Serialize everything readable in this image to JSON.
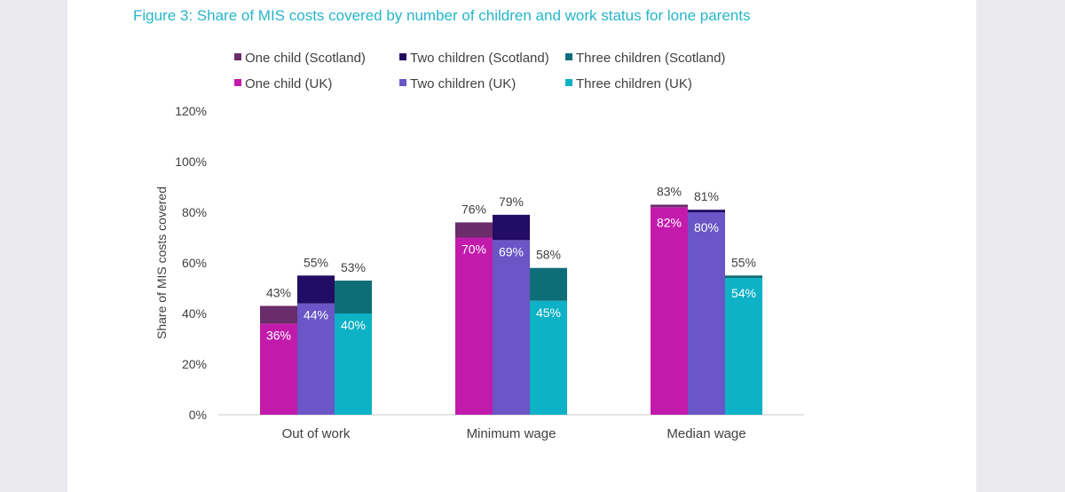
{
  "page": {
    "title": "Figure 3: Share of MIS costs covered by number of children and work status for lone parents",
    "colors": {
      "background": "#e9e9ee",
      "page": "#ffffff",
      "title": "#27b5c9"
    }
  },
  "chart_data": {
    "type": "bar",
    "stacked": true,
    "title": "Figure 3: Share of MIS costs covered by number of children and work status for lone parents",
    "ylabel": "Share of MIS costs covered",
    "xlabel": "",
    "categories": [
      "Out of work",
      "Minimum wage",
      "Median wage"
    ],
    "ylim": [
      0,
      120
    ],
    "yticks": [
      "0%",
      "20%",
      "40%",
      "60%",
      "80%",
      "100%",
      "120%"
    ],
    "grid": false,
    "legend_position": "top",
    "legend": [
      {
        "label": "One child (Scotland)",
        "color": "#6a2c6b"
      },
      {
        "label": "Two children (Scotland)",
        "color": "#230c63"
      },
      {
        "label": "Three children (Scotland)",
        "color": "#0e6e78"
      },
      {
        "label": "One child (UK)",
        "color": "#c21bac"
      },
      {
        "label": "Two children (UK)",
        "color": "#6a56c6"
      },
      {
        "label": "Three children (UK)",
        "color": "#0db2c6"
      }
    ],
    "groups": [
      {
        "name": "One child",
        "uk": [
          36,
          70,
          82
        ],
        "uk_labels": [
          "36%",
          "70%",
          "82%"
        ],
        "scotland": [
          43,
          76,
          83
        ],
        "scotland_labels": [
          "43%",
          "76%",
          "83%"
        ],
        "uk_color": "#c21bac",
        "scotland_color": "#6a2c6b"
      },
      {
        "name": "Two children",
        "uk": [
          44,
          69,
          80
        ],
        "uk_labels": [
          "44%",
          "69%",
          "80%"
        ],
        "scotland": [
          55,
          79,
          81
        ],
        "scotland_labels": [
          "55%",
          "79%",
          "81%"
        ],
        "uk_color": "#6a56c6",
        "scotland_color": "#230c63"
      },
      {
        "name": "Three children",
        "uk": [
          40,
          45,
          54
        ],
        "uk_labels": [
          "40%",
          "45%",
          "54%"
        ],
        "scotland": [
          53,
          58,
          55
        ],
        "scotland_labels": [
          "53%",
          "58%",
          "55%"
        ],
        "uk_color": "#0db2c6",
        "scotland_color": "#0e6e78"
      }
    ]
  }
}
